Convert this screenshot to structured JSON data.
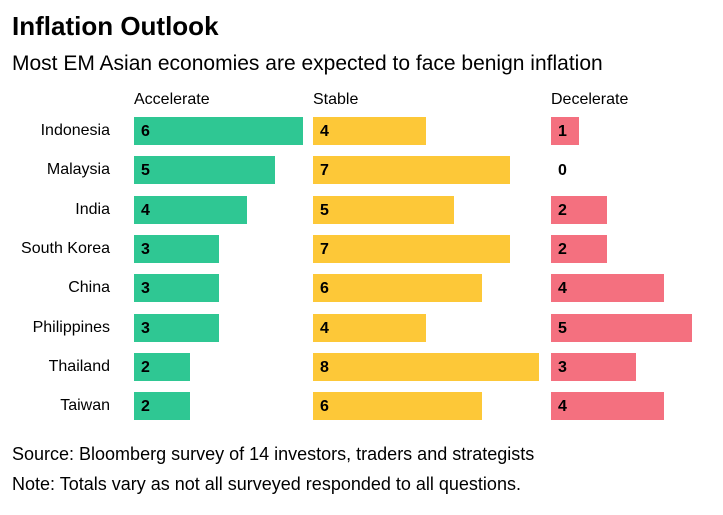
{
  "title": "Inflation Outlook",
  "subtitle": "Most EM Asian economies are expected to face benign inflation",
  "footer": {
    "source": "Source: Bloomberg survey of 14 investors, traders and strategists",
    "note": "Note: Totals vary as not all surveyed responded to all questions."
  },
  "colors": {
    "accelerate": "#2fc793",
    "stable": "#fdc838",
    "decelerate": "#f4707f",
    "text": "#000000",
    "background": "#ffffff"
  },
  "chart_data": {
    "type": "bar",
    "orientation": "horizontal",
    "title": "Inflation Outlook",
    "subtitle": "Most EM Asian economies are expected to face benign inflation",
    "categories": [
      "Indonesia",
      "Malaysia",
      "India",
      "South Korea",
      "China",
      "Philippines",
      "Thailand",
      "Taiwan"
    ],
    "series": [
      {
        "name": "Accelerate",
        "color": "#2fc793",
        "values": [
          6,
          5,
          4,
          3,
          3,
          3,
          2,
          2
        ]
      },
      {
        "name": "Stable",
        "color": "#fdc838",
        "values": [
          4,
          7,
          5,
          7,
          6,
          4,
          8,
          6
        ]
      },
      {
        "name": "Decelerate",
        "color": "#f4707f",
        "values": [
          1,
          0,
          2,
          2,
          4,
          5,
          3,
          4
        ]
      }
    ],
    "value_labels": true,
    "xlim": [
      0,
      8
    ],
    "grid": false,
    "legend_position": "column-headers-above-bars"
  }
}
